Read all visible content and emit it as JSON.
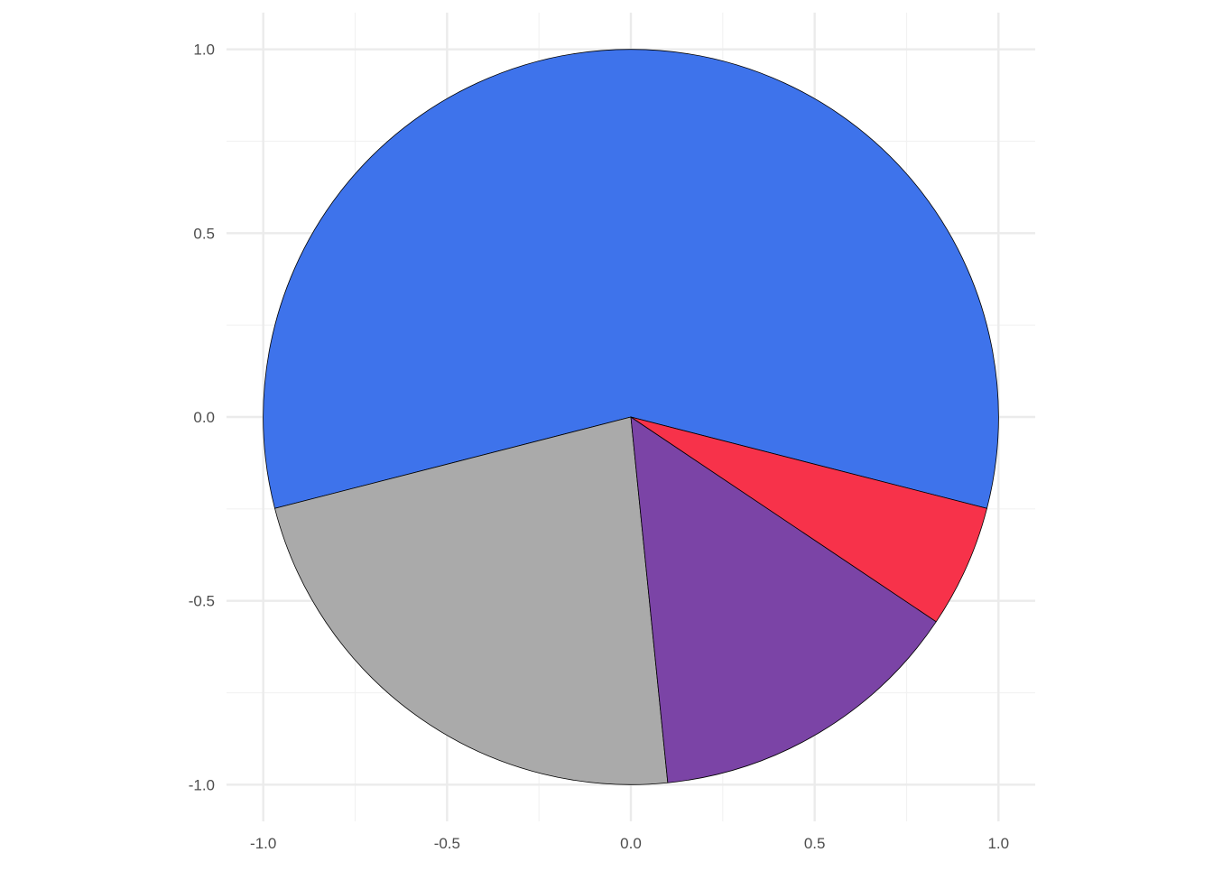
{
  "chart_data": {
    "type": "pie",
    "title": "",
    "xlabel": "",
    "ylabel": "",
    "xlim": [
      -1.1,
      1.1
    ],
    "ylim": [
      -1.1,
      1.1
    ],
    "grid": true,
    "legend": "none",
    "x_ticks": [
      "-1.0",
      "-0.5",
      "0.0",
      "0.5",
      "1.0"
    ],
    "y_ticks": [
      "1.0",
      "0.5",
      "0.0",
      "-0.5",
      "-1.0"
    ],
    "x_tick_values": [
      -1,
      -0.5,
      0,
      0.5,
      1
    ],
    "y_tick_values": [
      1,
      0.5,
      0,
      -0.5,
      -1
    ],
    "slices": [
      {
        "value": 0.58,
        "color": "#3E73EB"
      },
      {
        "value": 0.226,
        "color": "#AAAAAA"
      },
      {
        "value": 0.14,
        "color": "#7B44A6"
      },
      {
        "value": 0.054,
        "color": "#F7324A"
      }
    ]
  }
}
